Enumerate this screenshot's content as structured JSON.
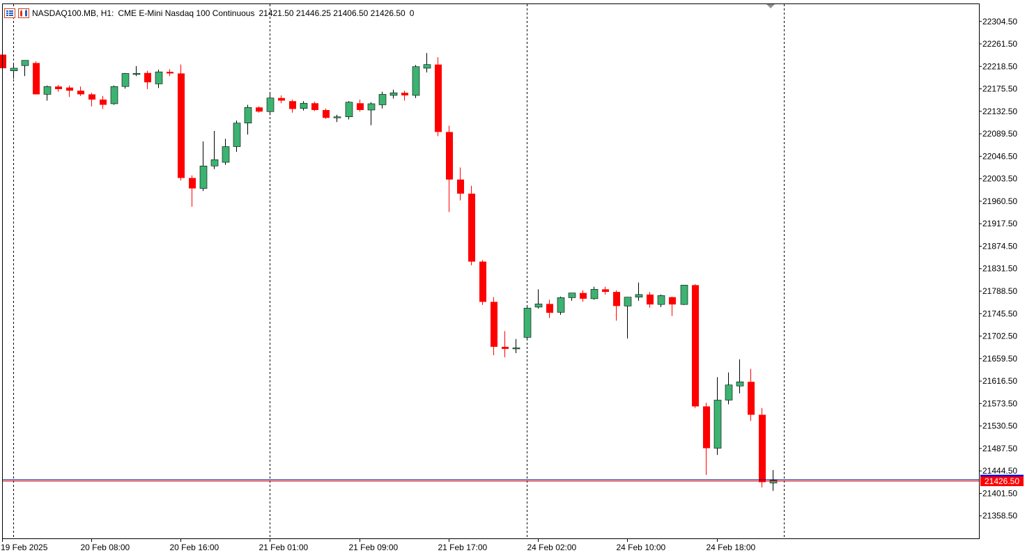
{
  "header": {
    "symbol": "NASDAQ100.MB, H1:",
    "description": "CME E-Mini Nasdaq 100 Continuous",
    "ohlc": "21421.50 21446.25 21406.50 21426.50",
    "extra": "0",
    "icons": [
      "chart-list-icon",
      "one-click-trading-icon"
    ]
  },
  "colors": {
    "bull": "#3cb371",
    "bear": "#ff0000",
    "bid_line": "#000080",
    "ask_line": "#ff0000",
    "price_label_bg": "#ff0000"
  },
  "current_price_label": "21426.50",
  "chart_data": {
    "type": "candlestick",
    "timeframe": "H1",
    "ylim": [
      21315.5,
      22337.5
    ],
    "y_ticks": [
      "22304.50",
      "22261.50",
      "22218.50",
      "22175.50",
      "22132.50",
      "22089.50",
      "22046.50",
      "22003.50",
      "21960.50",
      "21917.50",
      "21874.50",
      "21831.50",
      "21788.50",
      "21745.50",
      "21702.50",
      "21659.50",
      "21616.50",
      "21573.50",
      "21530.50",
      "21487.50",
      "21444.50",
      "21401.50",
      "21358.50"
    ],
    "x_labels": [
      "19 Feb 2025",
      "20 Feb 08:00",
      "20 Feb 16:00",
      "21 Feb 01:00",
      "21 Feb 09:00",
      "21 Feb 17:00",
      "24 Feb 02:00",
      "24 Feb 10:00",
      "24 Feb 18:00"
    ],
    "day_separators": [
      1,
      24,
      47,
      70
    ],
    "current_price": 21426.5,
    "candles": [
      {
        "o": 22241,
        "h": 22241,
        "l": 22215,
        "c": 22215
      },
      {
        "o": 22210,
        "h": 22225,
        "l": 22195,
        "c": 22215
      },
      {
        "o": 22220,
        "h": 22228,
        "l": 22200,
        "c": 22230
      },
      {
        "o": 22225,
        "h": 22228,
        "l": 22165,
        "c": 22165
      },
      {
        "o": 22165,
        "h": 22182,
        "l": 22153,
        "c": 22180
      },
      {
        "o": 22180,
        "h": 22183,
        "l": 22170,
        "c": 22175
      },
      {
        "o": 22178,
        "h": 22182,
        "l": 22160,
        "c": 22172
      },
      {
        "o": 22172,
        "h": 22180,
        "l": 22162,
        "c": 22165
      },
      {
        "o": 22165,
        "h": 22168,
        "l": 22142,
        "c": 22155
      },
      {
        "o": 22155,
        "h": 22162,
        "l": 22137,
        "c": 22145
      },
      {
        "o": 22147,
        "h": 22182,
        "l": 22145,
        "c": 22180
      },
      {
        "o": 22180,
        "h": 22206,
        "l": 22176,
        "c": 22205
      },
      {
        "o": 22205,
        "h": 22219,
        "l": 22200,
        "c": 22205
      },
      {
        "o": 22206,
        "h": 22210,
        "l": 22175,
        "c": 22188
      },
      {
        "o": 22185,
        "h": 22212,
        "l": 22177,
        "c": 22208
      },
      {
        "o": 22208,
        "h": 22213,
        "l": 22200,
        "c": 22205
      },
      {
        "o": 22205,
        "h": 22222,
        "l": 22000,
        "c": 22005
      },
      {
        "o": 22005,
        "h": 22010,
        "l": 21950,
        "c": 21985
      },
      {
        "o": 21985,
        "h": 22075,
        "l": 21980,
        "c": 22028
      },
      {
        "o": 22028,
        "h": 22095,
        "l": 22022,
        "c": 22040
      },
      {
        "o": 22035,
        "h": 22080,
        "l": 22030,
        "c": 22065
      },
      {
        "o": 22065,
        "h": 22115,
        "l": 22055,
        "c": 22110
      },
      {
        "o": 22110,
        "h": 22145,
        "l": 22088,
        "c": 22140
      },
      {
        "o": 22140,
        "h": 22142,
        "l": 22130,
        "c": 22132
      },
      {
        "o": 22132,
        "h": 22167,
        "l": 22125,
        "c": 22158
      },
      {
        "o": 22158,
        "h": 22163,
        "l": 22148,
        "c": 22153
      },
      {
        "o": 22152,
        "h": 22155,
        "l": 22130,
        "c": 22137
      },
      {
        "o": 22138,
        "h": 22152,
        "l": 22134,
        "c": 22148
      },
      {
        "o": 22148,
        "h": 22151,
        "l": 22133,
        "c": 22135
      },
      {
        "o": 22135,
        "h": 22138,
        "l": 22118,
        "c": 22120
      },
      {
        "o": 22122,
        "h": 22126,
        "l": 22112,
        "c": 22122
      },
      {
        "o": 22122,
        "h": 22152,
        "l": 22117,
        "c": 22150
      },
      {
        "o": 22148,
        "h": 22155,
        "l": 22132,
        "c": 22135
      },
      {
        "o": 22135,
        "h": 22150,
        "l": 22106,
        "c": 22147
      },
      {
        "o": 22145,
        "h": 22170,
        "l": 22138,
        "c": 22165
      },
      {
        "o": 22163,
        "h": 22174,
        "l": 22157,
        "c": 22168
      },
      {
        "o": 22168,
        "h": 22172,
        "l": 22153,
        "c": 22163
      },
      {
        "o": 22163,
        "h": 22221,
        "l": 22158,
        "c": 22218
      },
      {
        "o": 22215,
        "h": 22244,
        "l": 22207,
        "c": 22222
      },
      {
        "o": 22222,
        "h": 22236,
        "l": 22085,
        "c": 22093
      },
      {
        "o": 22093,
        "h": 22105,
        "l": 21940,
        "c": 22002
      },
      {
        "o": 22002,
        "h": 22025,
        "l": 21962,
        "c": 21975
      },
      {
        "o": 21975,
        "h": 21990,
        "l": 21838,
        "c": 21845
      },
      {
        "o": 21845,
        "h": 21848,
        "l": 21762,
        "c": 21768
      },
      {
        "o": 21768,
        "h": 21777,
        "l": 21666,
        "c": 21682
      },
      {
        "o": 21682,
        "h": 21712,
        "l": 21662,
        "c": 21678
      },
      {
        "o": 21680,
        "h": 21697,
        "l": 21670,
        "c": 21680
      },
      {
        "o": 21700,
        "h": 21761,
        "l": 21694,
        "c": 21756
      },
      {
        "o": 21758,
        "h": 21792,
        "l": 21755,
        "c": 21764
      },
      {
        "o": 21764,
        "h": 21772,
        "l": 21737,
        "c": 21747
      },
      {
        "o": 21748,
        "h": 21778,
        "l": 21743,
        "c": 21776
      },
      {
        "o": 21776,
        "h": 21785,
        "l": 21770,
        "c": 21785
      },
      {
        "o": 21785,
        "h": 21790,
        "l": 21768,
        "c": 21774
      },
      {
        "o": 21774,
        "h": 21797,
        "l": 21772,
        "c": 21792
      },
      {
        "o": 21792,
        "h": 21797,
        "l": 21782,
        "c": 21787
      },
      {
        "o": 21787,
        "h": 21790,
        "l": 21732,
        "c": 21760
      },
      {
        "o": 21760,
        "h": 21776,
        "l": 21698,
        "c": 21777
      },
      {
        "o": 21777,
        "h": 21805,
        "l": 21770,
        "c": 21782
      },
      {
        "o": 21782,
        "h": 21787,
        "l": 21757,
        "c": 21763
      },
      {
        "o": 21763,
        "h": 21782,
        "l": 21758,
        "c": 21780
      },
      {
        "o": 21777,
        "h": 21778,
        "l": 21741,
        "c": 21763
      },
      {
        "o": 21763,
        "h": 21800,
        "l": 21762,
        "c": 21800
      },
      {
        "o": 21800,
        "h": 21802,
        "l": 21565,
        "c": 21568
      },
      {
        "o": 21568,
        "h": 21575,
        "l": 21437,
        "c": 21488
      },
      {
        "o": 21488,
        "h": 21624,
        "l": 21475,
        "c": 21580
      },
      {
        "o": 21580,
        "h": 21633,
        "l": 21572,
        "c": 21609
      },
      {
        "o": 21607,
        "h": 21658,
        "l": 21593,
        "c": 21615
      },
      {
        "o": 21615,
        "h": 21640,
        "l": 21540,
        "c": 21552
      },
      {
        "o": 21552,
        "h": 21565,
        "l": 21413,
        "c": 21423
      },
      {
        "o": 21421.5,
        "h": 21446.25,
        "l": 21406.5,
        "c": 21426.5
      }
    ]
  }
}
